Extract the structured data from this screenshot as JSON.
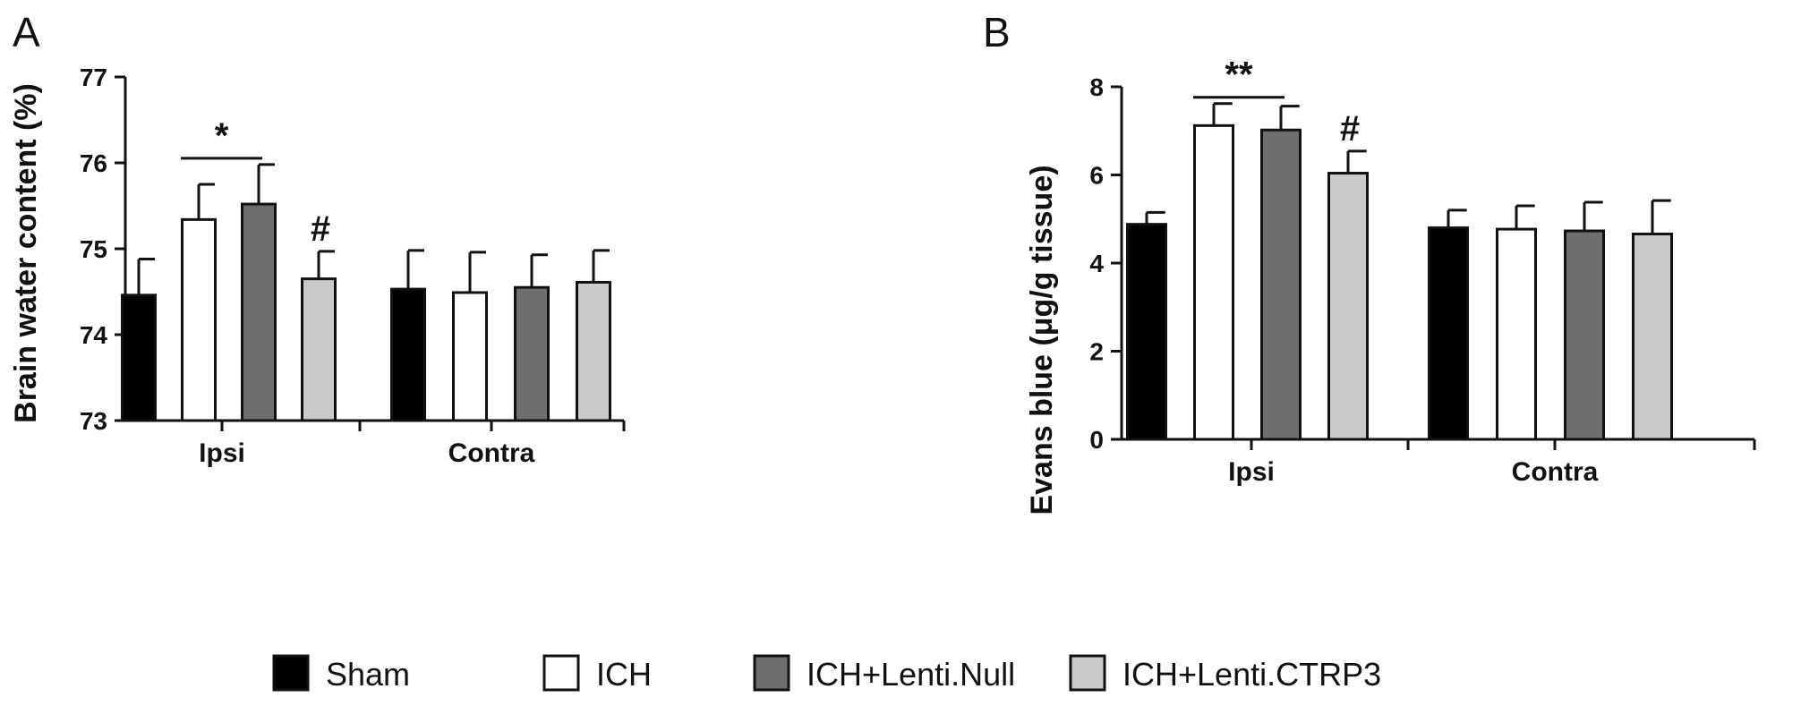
{
  "legend": {
    "position": "bottom",
    "items": [
      {
        "label": "Sham",
        "color": "#000000"
      },
      {
        "label": "ICH",
        "color": "#ffffff"
      },
      {
        "label": "ICH+Lenti.Null",
        "color": "#6e6e6e"
      },
      {
        "label": "ICH+Lenti.CTRP3",
        "color": "#cacaca"
      }
    ]
  },
  "chart_data": [
    {
      "panel": "A",
      "type": "bar",
      "ylabel": "Brain water content (%)",
      "xlabel": "",
      "ylim": [
        73,
        77
      ],
      "yticks": [
        "73",
        "74",
        "75",
        "76",
        "77"
      ],
      "grid": false,
      "categories": [
        "Ipsi",
        "Contra"
      ],
      "series": [
        {
          "name": "Sham",
          "values": [
            74.46,
            74.53
          ],
          "errors": [
            0.42,
            0.45
          ]
        },
        {
          "name": "ICH",
          "values": [
            75.34,
            74.49
          ],
          "errors": [
            0.41,
            0.47
          ]
        },
        {
          "name": "ICH+Lenti.Null",
          "values": [
            75.52,
            74.55
          ],
          "errors": [
            0.46,
            0.38
          ]
        },
        {
          "name": "ICH+Lenti.CTRP3",
          "values": [
            74.65,
            74.61
          ],
          "errors": [
            0.32,
            0.37
          ]
        }
      ],
      "annotations": [
        {
          "text": "*",
          "type": "bracket",
          "category": 0,
          "from_series": 1,
          "to_series": 2
        },
        {
          "text": "#",
          "type": "mark",
          "category": 0,
          "series": 3
        }
      ]
    },
    {
      "panel": "B",
      "type": "bar",
      "ylabel": "Evans blue (μg/g tissue)",
      "xlabel": "",
      "ylim": [
        0,
        8
      ],
      "yticks": [
        "0",
        "2",
        "4",
        "6",
        "8"
      ],
      "grid": false,
      "categories": [
        "Ipsi",
        "Contra"
      ],
      "series": [
        {
          "name": "Sham",
          "values": [
            4.88,
            4.8
          ],
          "errors": [
            0.27,
            0.4
          ]
        },
        {
          "name": "ICH",
          "values": [
            7.12,
            4.77
          ],
          "errors": [
            0.5,
            0.53
          ]
        },
        {
          "name": "ICH+Lenti.Null",
          "values": [
            7.02,
            4.73
          ],
          "errors": [
            0.54,
            0.65
          ]
        },
        {
          "name": "ICH+Lenti.CTRP3",
          "values": [
            6.04,
            4.66
          ],
          "errors": [
            0.5,
            0.76
          ]
        }
      ],
      "annotations": [
        {
          "text": "**",
          "type": "bracket",
          "category": 0,
          "from_series": 1,
          "to_series": 2
        },
        {
          "text": "#",
          "type": "mark",
          "category": 0,
          "series": 3
        }
      ]
    }
  ]
}
